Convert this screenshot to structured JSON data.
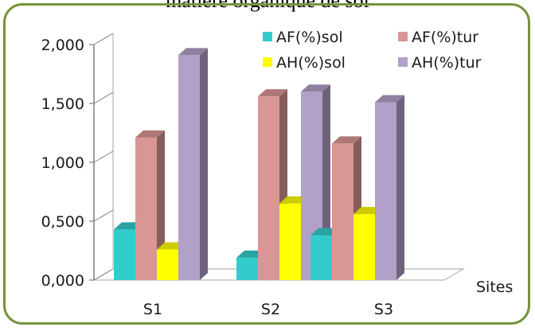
{
  "chart_data": {
    "type": "bar",
    "title": "matière organique de sol",
    "xlabel": "Sites",
    "ylabel": "",
    "categories": [
      "S1",
      "S2",
      "S3"
    ],
    "series": [
      {
        "name": "AF(%)sol",
        "color": "#33cccc",
        "values": [
          0.43,
          0.19,
          0.38
        ]
      },
      {
        "name": "AF(%)tur",
        "color": "#da9694",
        "values": [
          1.21,
          1.56,
          1.16
        ]
      },
      {
        "name": "AH(%)sol",
        "color": "#ffff00",
        "values": [
          0.26,
          0.65,
          0.56
        ]
      },
      {
        "name": "AH(%)tur",
        "color": "#b1a0c7",
        "values": [
          1.91,
          1.6,
          1.51
        ]
      }
    ],
    "yticks": [
      "0,000",
      "0,500",
      "1,000",
      "1,500",
      "2,000"
    ],
    "ylim": [
      0,
      2
    ],
    "grid": false,
    "legend": "top-right"
  }
}
